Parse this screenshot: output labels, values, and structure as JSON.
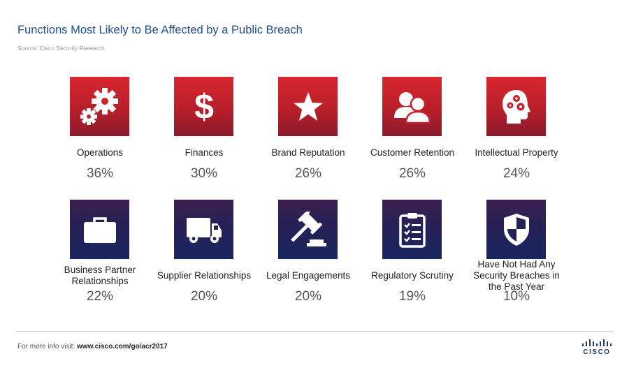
{
  "title": "Functions Most Likely to Be Affected by a Public Breach",
  "source": "Source: Cisco Security Research",
  "footer": {
    "prefix": "For more info visit:",
    "url": "www.cisco.com/go/acr2017"
  },
  "logo": {
    "text": "CISCO"
  },
  "colors": {
    "red_tile": "#c8232c",
    "navy_tile": "#232158",
    "title": "#1f4e8c"
  },
  "chart_data": {
    "type": "table",
    "title": "Functions Most Likely to Be Affected by a Public Breach",
    "unit": "%",
    "items": [
      {
        "label": "Operations",
        "value": 36,
        "display": "36%",
        "icon": "gears-icon"
      },
      {
        "label": "Finances",
        "value": 30,
        "display": "30%",
        "icon": "dollar-icon"
      },
      {
        "label": "Brand Reputation",
        "value": 26,
        "display": "26%",
        "icon": "star-icon"
      },
      {
        "label": "Customer Retention",
        "value": 26,
        "display": "26%",
        "icon": "people-icon"
      },
      {
        "label": "Intellectual Property",
        "value": 24,
        "display": "24%",
        "icon": "head-gears-icon"
      },
      {
        "label": "Business Partner Relationships",
        "value": 22,
        "display": "22%",
        "icon": "briefcase-icon"
      },
      {
        "label": "Supplier Relationships",
        "value": 20,
        "display": "20%",
        "icon": "truck-icon"
      },
      {
        "label": "Legal Engagements",
        "value": 20,
        "display": "20%",
        "icon": "gavel-icon"
      },
      {
        "label": "Regulatory Scrutiny",
        "value": 19,
        "display": "19%",
        "icon": "clipboard-icon"
      },
      {
        "label": "Have Not Had Any Security Breaches in the Past Year",
        "value": 10,
        "display": "10%",
        "icon": "shield-icon"
      }
    ]
  }
}
